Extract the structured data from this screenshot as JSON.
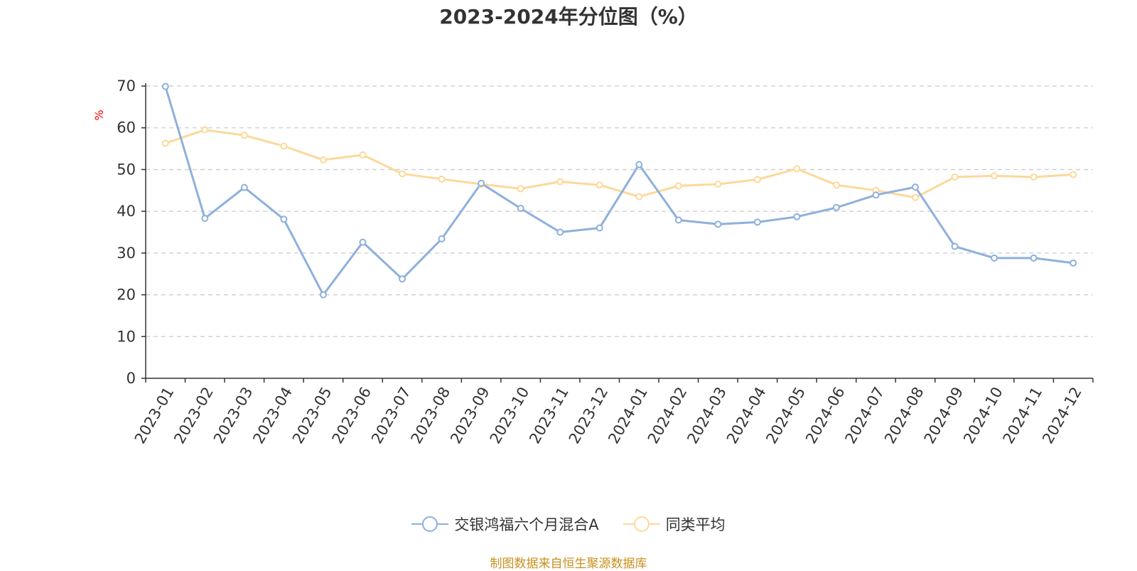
{
  "chart_data": {
    "type": "line",
    "title": "2023-2024年分位图（%）",
    "ylabel": "%",
    "xlabel": "",
    "ylim": [
      0,
      70
    ],
    "yticks": [
      0,
      10,
      20,
      30,
      40,
      50,
      60,
      70
    ],
    "grid": true,
    "legend_position": "bottom",
    "categories": [
      "2023-01",
      "2023-02",
      "2023-03",
      "2023-04",
      "2023-05",
      "2023-06",
      "2023-07",
      "2023-08",
      "2023-09",
      "2023-10",
      "2023-11",
      "2023-12",
      "2024-01",
      "2024-02",
      "2024-03",
      "2024-04",
      "2024-05",
      "2024-06",
      "2024-07",
      "2024-08",
      "2024-09",
      "2024-10",
      "2024-11",
      "2024-12"
    ],
    "series": [
      {
        "name": "交银鸿福六个月混合A",
        "color": "#8eb0dc",
        "values": [
          69.9,
          38.3,
          45.7,
          38.1,
          20.0,
          32.6,
          23.8,
          33.4,
          46.7,
          40.7,
          35.0,
          36.0,
          51.2,
          37.9,
          36.9,
          37.4,
          38.7,
          40.9,
          43.9,
          45.8,
          31.6,
          28.8,
          28.8,
          27.6
        ]
      },
      {
        "name": "同类平均",
        "color": "#fcd99a",
        "values": [
          56.3,
          59.5,
          58.2,
          55.6,
          52.3,
          53.5,
          49.0,
          47.7,
          46.5,
          45.4,
          47.1,
          46.3,
          43.5,
          46.1,
          46.5,
          47.6,
          50.2,
          46.3,
          45.0,
          43.3,
          48.2,
          48.5,
          48.2,
          48.8
        ]
      }
    ]
  },
  "source_note": "制图数据来自恒生聚源数据库"
}
